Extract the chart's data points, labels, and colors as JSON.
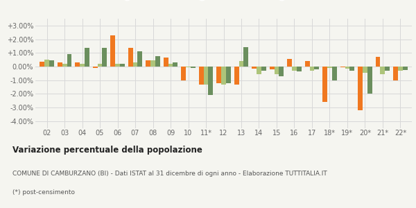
{
  "years": [
    "02",
    "03",
    "04",
    "05",
    "06",
    "07",
    "08",
    "09",
    "10",
    "11*",
    "12",
    "13",
    "14",
    "15",
    "16",
    "17",
    "18*",
    "19*",
    "20*",
    "21*",
    "22*"
  ],
  "camburzano": [
    0.35,
    0.3,
    0.3,
    -0.1,
    2.3,
    1.35,
    0.45,
    0.65,
    -1.0,
    -1.3,
    -1.2,
    -1.3,
    -0.15,
    -0.2,
    0.55,
    0.4,
    -2.6,
    -0.05,
    -3.2,
    0.7,
    -1.0
  ],
  "provincia_bi": [
    0.5,
    0.2,
    0.2,
    0.2,
    0.2,
    0.3,
    0.45,
    0.2,
    -0.05,
    -1.3,
    -1.3,
    0.4,
    -0.55,
    -0.55,
    -0.3,
    -0.3,
    -0.1,
    -0.15,
    -0.45,
    -0.55,
    -0.3
  ],
  "piemonte": [
    0.45,
    0.9,
    1.35,
    1.35,
    0.2,
    1.1,
    0.75,
    0.3,
    -0.1,
    -2.1,
    -1.2,
    1.4,
    -0.3,
    -0.7,
    -0.35,
    -0.2,
    -1.0,
    -0.3,
    -2.0,
    -0.3,
    -0.25
  ],
  "color_camburzano": "#f07820",
  "color_provincia": "#adc47a",
  "color_piemonte": "#6b8f5e",
  "bg_color": "#f5f5f0",
  "grid_color": "#d8d8d8",
  "ylim": [
    -4.5,
    3.5
  ],
  "yticks": [
    -4.0,
    -3.0,
    -2.0,
    -1.0,
    0.0,
    1.0,
    2.0,
    3.0
  ],
  "title_bold": "Variazione percentuale della popolazione",
  "subtitle1": "COMUNE DI CAMBURZANO (BI) - Dati ISTAT al 31 dicembre di ogni anno - Elaborazione TUTTITALIA.IT",
  "subtitle2": "(*) post-censimento"
}
